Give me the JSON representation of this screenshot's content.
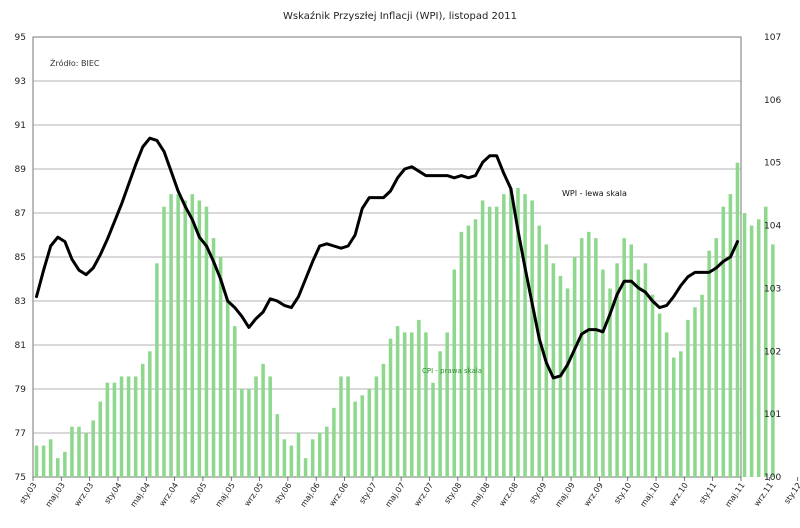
{
  "chart_data": {
    "type": "bar+line",
    "title": "Wskaźnik Przyszłej Inflacji (WPI), listopad 2011",
    "source": "Źródło: BIEC",
    "left_axis": {
      "min": 75,
      "max": 95,
      "ticks": [
        75,
        77,
        79,
        81,
        83,
        85,
        87,
        89,
        91,
        93,
        95
      ]
    },
    "right_axis": {
      "min": 100,
      "max": 107,
      "ticks": [
        100,
        101,
        102,
        103,
        104,
        105,
        106,
        107
      ]
    },
    "grid": true,
    "x_labels": [
      "sty.03",
      "maj.03",
      "wrz.03",
      "sty.04",
      "maj.04",
      "wrz.04",
      "sty.05",
      "maj.05",
      "wrz.05",
      "sty.06",
      "maj.06",
      "wrz.06",
      "sty.07",
      "maj.07",
      "wrz.07",
      "sty.08",
      "maj.08",
      "wrz.08",
      "sty.09",
      "maj.09",
      "wrz.09",
      "sty.10",
      "maj.10",
      "wrz.10",
      "sty.11",
      "maj.11",
      "wrz.11",
      "sty.12"
    ],
    "series": [
      {
        "name": "WPI",
        "label": "WPI - lewa skala",
        "kind": "line",
        "axis": "left",
        "color": "#000000",
        "values": [
          83.2,
          84.4,
          85.5,
          85.9,
          85.7,
          84.9,
          84.4,
          84.2,
          84.5,
          85.1,
          85.8,
          86.6,
          87.4,
          88.3,
          89.2,
          90.0,
          90.4,
          90.3,
          89.8,
          88.9,
          88.0,
          87.3,
          86.7,
          85.9,
          85.5,
          84.8,
          84.0,
          83.0,
          82.7,
          82.3,
          81.8,
          82.2,
          82.5,
          83.1,
          83.0,
          82.8,
          82.7,
          83.2,
          84.0,
          84.8,
          85.5,
          85.6,
          85.5,
          85.4,
          85.5,
          86.0,
          87.2,
          87.7,
          87.7,
          87.7,
          88.0,
          88.6,
          89.0,
          89.1,
          88.9,
          88.7,
          88.7,
          88.7,
          88.7,
          88.6,
          88.7,
          88.6,
          88.7,
          89.3,
          89.6,
          89.6,
          88.8,
          88.1,
          86.2,
          84.5,
          82.9,
          81.3,
          80.2,
          79.5,
          79.6,
          80.1,
          80.8,
          81.5,
          81.7,
          81.7,
          81.6,
          82.4,
          83.3,
          83.9,
          83.9,
          83.6,
          83.4,
          83.0,
          82.7,
          82.8,
          83.2,
          83.7,
          84.1,
          84.3,
          84.3,
          84.3,
          84.5,
          84.8,
          85.0,
          85.7
        ]
      },
      {
        "name": "CPI",
        "label": "CPI - prawa skala",
        "kind": "bar",
        "axis": "right",
        "color": "#8ed88e",
        "values": [
          100.5,
          100.5,
          100.6,
          100.3,
          100.4,
          100.8,
          100.8,
          100.7,
          100.9,
          101.2,
          101.5,
          101.5,
          101.6,
          101.6,
          101.6,
          101.8,
          102.0,
          103.4,
          104.3,
          104.5,
          104.5,
          104.4,
          104.5,
          104.4,
          104.3,
          103.8,
          103.5,
          102.8,
          102.4,
          101.4,
          101.4,
          101.6,
          101.8,
          101.6,
          101.0,
          100.6,
          100.5,
          100.7,
          100.3,
          100.6,
          100.7,
          100.8,
          101.1,
          101.6,
          101.6,
          101.2,
          101.3,
          101.4,
          101.6,
          101.8,
          102.2,
          102.4,
          102.3,
          102.3,
          102.5,
          102.3,
          101.5,
          102.0,
          102.3,
          103.3,
          103.9,
          104.0,
          104.1,
          104.4,
          104.3,
          104.3,
          104.5,
          104.6,
          104.6,
          104.5,
          104.4,
          104.0,
          103.7,
          103.4,
          103.2,
          103.0,
          103.5,
          103.8,
          103.9,
          103.8,
          103.3,
          103.0,
          103.4,
          103.8,
          103.7,
          103.3,
          103.4,
          102.9,
          102.6,
          102.3,
          101.9,
          102.0,
          102.5,
          102.7,
          102.9,
          103.6,
          103.8,
          104.3,
          104.5,
          105.0,
          104.2,
          104.0,
          104.1,
          104.3,
          103.7
        ]
      }
    ],
    "annotations": [
      {
        "text": "WPI - lewa skala",
        "series": "WPI"
      },
      {
        "text": "CPI - prawa skala",
        "series": "CPI"
      }
    ]
  }
}
